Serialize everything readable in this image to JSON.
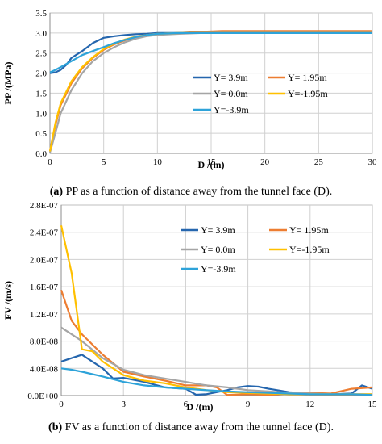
{
  "captions": {
    "a": {
      "label": "(a)",
      "text": "PP as a function of distance away from the tunnel face (D)."
    },
    "b": {
      "label": "(b)",
      "text": "FV as a function of distance away from the tunnel face (D)."
    }
  },
  "chart_data": [
    {
      "type": "line",
      "title": "",
      "xlabel": "D /(m)",
      "ylabel": "PP /(MPa)",
      "xlim": [
        0,
        30
      ],
      "ylim": [
        0,
        3.5
      ],
      "xticks": [
        0,
        5,
        10,
        15,
        20,
        25,
        30
      ],
      "yticks": [
        0.0,
        0.5,
        1.0,
        1.5,
        2.0,
        2.5,
        3.0,
        3.5
      ],
      "xtick_labels": [
        "0",
        "5",
        "10",
        "15",
        "20",
        "25",
        "30"
      ],
      "ytick_labels": [
        "0.0",
        "0.5",
        "1.0",
        "1.5",
        "2.0",
        "2.5",
        "3.0",
        "3.5"
      ],
      "grid": true,
      "legend_position": "right",
      "series": [
        {
          "name": "Y= 3.9m",
          "color": "#2566AE",
          "x": [
            0,
            0.5,
            1,
            1.5,
            2,
            3,
            4,
            5,
            6,
            7,
            8,
            9,
            10,
            12,
            14,
            16,
            20,
            25,
            30
          ],
          "y": [
            2.0,
            2.02,
            2.08,
            2.2,
            2.38,
            2.55,
            2.75,
            2.88,
            2.92,
            2.95,
            2.97,
            2.98,
            3.0,
            3.0,
            3.0,
            3.0,
            3.0,
            3.0,
            3.0
          ]
        },
        {
          "name": "Y= 1.95m",
          "color": "#ED7D31",
          "x": [
            0,
            0.5,
            1,
            2,
            3,
            4,
            5,
            6,
            7,
            8,
            9,
            10,
            12,
            14,
            16,
            20,
            25,
            30
          ],
          "y": [
            0.05,
            0.7,
            1.2,
            1.75,
            2.12,
            2.38,
            2.58,
            2.72,
            2.82,
            2.9,
            2.95,
            2.98,
            3.0,
            3.03,
            3.05,
            3.05,
            3.05,
            3.05
          ]
        },
        {
          "name": "Y= 0.0m",
          "color": "#A5A5A5",
          "x": [
            0,
            0.5,
            1,
            2,
            3,
            4,
            5,
            6,
            7,
            8,
            9,
            10,
            12,
            14,
            16,
            20,
            25,
            30
          ],
          "y": [
            0.02,
            0.5,
            1.0,
            1.58,
            2.0,
            2.3,
            2.5,
            2.65,
            2.77,
            2.86,
            2.92,
            2.95,
            2.98,
            3.0,
            3.0,
            3.0,
            3.0,
            3.0
          ]
        },
        {
          "name": "Y=-1.95m",
          "color": "#FFC000",
          "x": [
            0,
            0.5,
            1,
            2,
            3,
            4,
            5,
            6,
            7,
            8,
            9,
            10,
            12,
            14,
            16,
            20,
            25,
            30
          ],
          "y": [
            0.05,
            0.75,
            1.25,
            1.8,
            2.15,
            2.4,
            2.6,
            2.74,
            2.84,
            2.91,
            2.95,
            2.98,
            3.0,
            3.0,
            3.0,
            3.0,
            3.0,
            3.0
          ]
        },
        {
          "name": "Y=-3.9m",
          "color": "#2EA3D9",
          "x": [
            0,
            0.5,
            1,
            2,
            3,
            4,
            5,
            6,
            7,
            8,
            9,
            10,
            12,
            14,
            16,
            20,
            25,
            30
          ],
          "y": [
            2.02,
            2.08,
            2.15,
            2.3,
            2.45,
            2.55,
            2.65,
            2.75,
            2.83,
            2.9,
            2.95,
            2.98,
            3.0,
            3.0,
            3.0,
            3.0,
            3.0,
            3.0
          ]
        }
      ]
    },
    {
      "type": "line",
      "title": "",
      "xlabel": "D /(m)",
      "ylabel": "FV /(m/s)",
      "xlim": [
        0,
        15
      ],
      "ylim": [
        0,
        2.8e-07
      ],
      "xticks": [
        0,
        3,
        6,
        9,
        12,
        15
      ],
      "yticks": [
        0,
        4e-08,
        8e-08,
        1.2e-07,
        1.6e-07,
        2e-07,
        2.4e-07,
        2.8e-07
      ],
      "xtick_labels": [
        "0",
        "3",
        "6",
        "9",
        "12",
        "15"
      ],
      "ytick_labels": [
        "0.0E+00",
        "4.0E-08",
        "8.0E-08",
        "1.2E-07",
        "1.6E-07",
        "2.0E-07",
        "2.4E-07",
        "2.8E-07"
      ],
      "grid": true,
      "legend_position": "top-right",
      "series": [
        {
          "name": "Y= 3.9m",
          "color": "#2566AE",
          "x": [
            0,
            0.5,
            1,
            1.5,
            2,
            2.5,
            3,
            3.5,
            4,
            5,
            6,
            6.5,
            7,
            8,
            8.5,
            9,
            9.5,
            10,
            11,
            12,
            13,
            14,
            14.5,
            15
          ],
          "y": [
            5e-08,
            5.5e-08,
            6e-08,
            5e-08,
            4e-08,
            2.5e-08,
            2.6e-08,
            2.3e-08,
            2e-08,
            1.2e-08,
            1e-08,
            1.2e-09,
            2e-09,
            8e-09,
            1.2e-08,
            1.4e-08,
            1.3e-08,
            1e-08,
            5e-09,
            3e-09,
            2e-09,
            3e-09,
            1.5e-08,
            1e-08
          ]
        },
        {
          "name": "Y= 1.95m",
          "color": "#ED7D31",
          "x": [
            0,
            0.5,
            1,
            2,
            3,
            4,
            5,
            6,
            7,
            7.5,
            8,
            9,
            10,
            11,
            12,
            13,
            14,
            15
          ],
          "y": [
            1.55e-07,
            1.1e-07,
            9e-08,
            6e-08,
            3.5e-08,
            2.8e-08,
            2.2e-08,
            1.5e-08,
            1.5e-08,
            1.2e-08,
            1e-09,
            2e-09,
            1e-09,
            3e-09,
            4e-09,
            3e-09,
            1e-08,
            1.2e-08
          ]
        },
        {
          "name": "Y= 0.0m",
          "color": "#A5A5A5",
          "x": [
            0,
            0.5,
            1,
            2,
            3,
            4,
            5,
            6,
            7,
            8,
            9,
            10,
            11,
            12,
            13,
            14,
            15
          ],
          "y": [
            1e-07,
            9e-08,
            8e-08,
            5.5e-08,
            3.8e-08,
            3e-08,
            2.5e-08,
            2e-08,
            1.5e-08,
            1.2e-08,
            8e-09,
            6e-09,
            4e-09,
            3e-09,
            2e-09,
            2e-09,
            2e-09
          ]
        },
        {
          "name": "Y=-1.95m",
          "color": "#FFC000",
          "x": [
            0,
            0.5,
            1,
            1.5,
            2,
            3,
            4,
            5,
            6,
            7,
            8,
            9,
            10,
            11,
            12,
            13,
            14,
            15
          ],
          "y": [
            2.5e-07,
            1.8e-07,
            6.8e-08,
            6.5e-08,
            5e-08,
            3e-08,
            2.2e-08,
            1.8e-08,
            1.2e-08,
            8e-09,
            5e-09,
            4e-09,
            3e-09,
            2e-09,
            2e-09,
            2e-09,
            2e-09,
            2e-09
          ]
        },
        {
          "name": "Y=-3.9m",
          "color": "#2EA3D9",
          "x": [
            0,
            0.5,
            1,
            2,
            3,
            4,
            5,
            6,
            7,
            8,
            9,
            10,
            11,
            12,
            13,
            14,
            15
          ],
          "y": [
            4e-08,
            3.8e-08,
            3.5e-08,
            2.8e-08,
            2e-08,
            1.5e-08,
            1.2e-08,
            1e-08,
            8e-09,
            6e-09,
            5e-09,
            4e-09,
            3e-09,
            2e-09,
            2e-09,
            2e-09,
            1e-09
          ]
        }
      ]
    }
  ]
}
